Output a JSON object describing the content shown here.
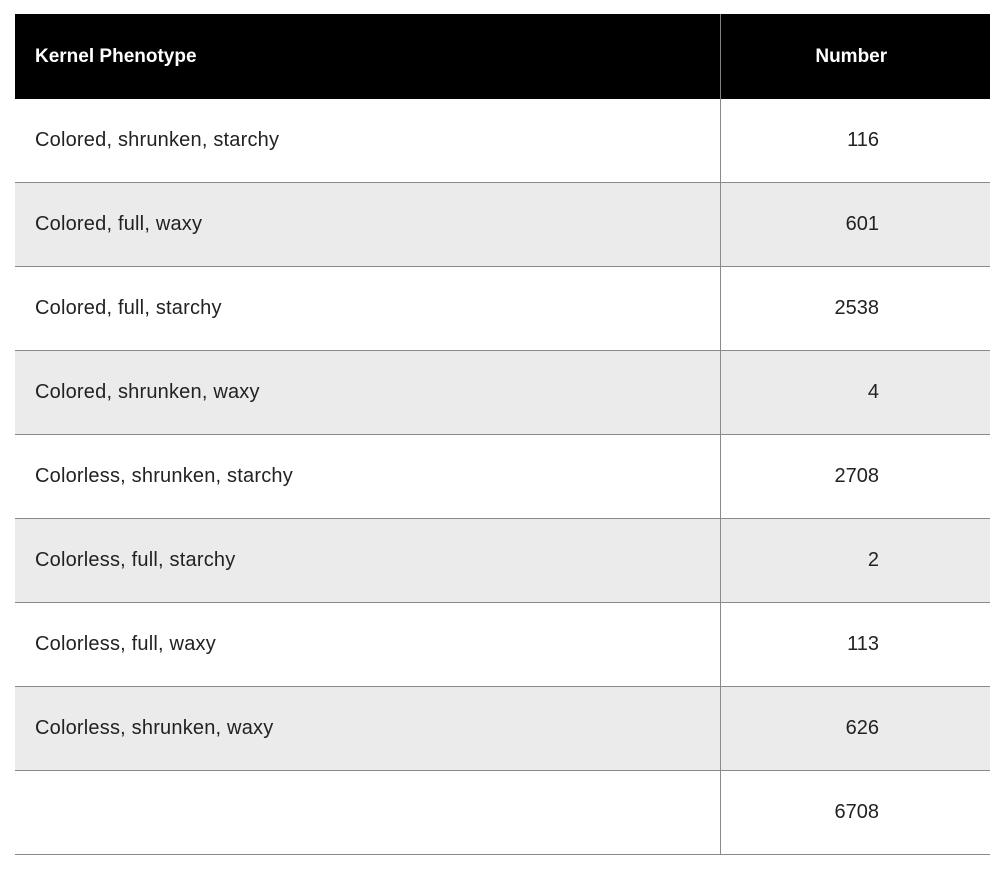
{
  "table": {
    "headers": {
      "phenotype": "Kernel Phenotype",
      "number": "Number"
    },
    "rows": [
      {
        "phenotype": "Colored, shrunken, starchy",
        "number": "116"
      },
      {
        "phenotype": "Colored, full, waxy",
        "number": "601"
      },
      {
        "phenotype": "Colored, full, starchy",
        "number": "2538"
      },
      {
        "phenotype": "Colored, shrunken, waxy",
        "number": "4"
      },
      {
        "phenotype": "Colorless, shrunken, starchy",
        "number": "2708"
      },
      {
        "phenotype": "Colorless, full, starchy",
        "number": "2"
      },
      {
        "phenotype": "Colorless, full, waxy",
        "number": "113"
      },
      {
        "phenotype": "Colorless, shrunken, waxy",
        "number": "626"
      },
      {
        "phenotype": "",
        "number": "6708"
      }
    ]
  },
  "colors": {
    "header_bg": "#000000",
    "header_text": "#ffffff",
    "stripe_bg": "#ebebeb",
    "border": "#8a8a8a"
  }
}
